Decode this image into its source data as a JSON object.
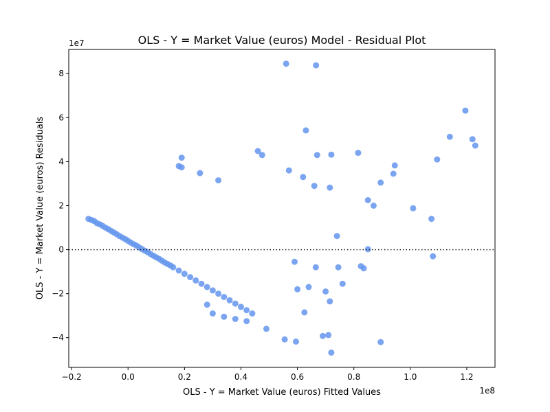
{
  "chart_data": {
    "type": "scatter",
    "title": "OLS - Y = Market Value (euros) Model - Residual Plot",
    "xlabel": "OLS - Y = Market Value (euros) Fitted Values",
    "ylabel": "OLS - Y = Market Value (euros) Residuals",
    "x_offset_label": "1e8",
    "y_offset_label": "1e7",
    "x_scale_exponent": 8,
    "y_scale_exponent": 7,
    "xlim": [
      -0.21,
      1.3
    ],
    "ylim": [
      -5.35,
      9.1
    ],
    "xticks": [
      -0.2,
      0.0,
      0.2,
      0.4,
      0.6,
      0.8,
      1.0,
      1.2
    ],
    "xtick_labels": [
      "−0.2",
      "0.0",
      "0.2",
      "0.4",
      "0.6",
      "0.8",
      "1.0",
      "1.2"
    ],
    "yticks": [
      -4,
      -2,
      0,
      2,
      4,
      6,
      8
    ],
    "ytick_labels": [
      "−4",
      "−2",
      "0",
      "2",
      "4",
      "6",
      "8"
    ],
    "reference_line": {
      "y": 0,
      "style": "dotted",
      "color": "#222222"
    },
    "grid": false,
    "point_color": "#6495ED",
    "point_opacity": 0.85,
    "series": [
      {
        "points": [
          [
            0.56,
            8.45
          ],
          [
            0.666,
            8.38
          ],
          [
            1.195,
            6.32
          ],
          [
            0.63,
            5.42
          ],
          [
            1.14,
            5.13
          ],
          [
            1.22,
            5.02
          ],
          [
            1.23,
            4.73
          ],
          [
            0.46,
            4.48
          ],
          [
            0.475,
            4.3
          ],
          [
            0.67,
            4.3
          ],
          [
            0.72,
            4.32
          ],
          [
            0.815,
            4.4
          ],
          [
            0.19,
            4.18
          ],
          [
            1.095,
            4.1
          ],
          [
            0.945,
            3.83
          ],
          [
            0.18,
            3.8
          ],
          [
            0.19,
            3.74
          ],
          [
            0.57,
            3.6
          ],
          [
            0.255,
            3.48
          ],
          [
            0.94,
            3.45
          ],
          [
            0.32,
            3.15
          ],
          [
            0.62,
            3.3
          ],
          [
            0.715,
            2.82
          ],
          [
            0.66,
            2.9
          ],
          [
            0.895,
            3.05
          ],
          [
            0.85,
            2.25
          ],
          [
            0.87,
            2.0
          ],
          [
            1.01,
            1.88
          ],
          [
            1.075,
            1.4
          ],
          [
            0.74,
            0.62
          ],
          [
            0.745,
            -0.8
          ],
          [
            0.76,
            -1.55
          ],
          [
            0.825,
            -0.75
          ],
          [
            0.835,
            -0.85
          ],
          [
            0.85,
            0.02
          ],
          [
            1.08,
            -0.3
          ],
          [
            0.7,
            -1.9
          ],
          [
            0.715,
            -2.35
          ],
          [
            0.71,
            -3.88
          ],
          [
            0.69,
            -3.92
          ],
          [
            0.72,
            -4.68
          ],
          [
            0.895,
            -4.2
          ],
          [
            0.595,
            -4.18
          ],
          [
            0.555,
            -4.08
          ],
          [
            0.49,
            -3.6
          ],
          [
            0.625,
            -2.85
          ],
          [
            0.6,
            -1.8
          ],
          [
            0.64,
            -1.7
          ],
          [
            0.665,
            -0.8
          ],
          [
            0.59,
            -0.55
          ],
          [
            -0.14,
            1.4
          ],
          [
            -0.13,
            1.35
          ],
          [
            -0.12,
            1.3
          ],
          [
            -0.11,
            1.2
          ],
          [
            -0.1,
            1.15
          ],
          [
            -0.09,
            1.08
          ],
          [
            -0.08,
            1.0
          ],
          [
            -0.07,
            0.93
          ],
          [
            -0.06,
            0.85
          ],
          [
            -0.05,
            0.78
          ],
          [
            -0.04,
            0.7
          ],
          [
            -0.03,
            0.62
          ],
          [
            -0.02,
            0.55
          ],
          [
            -0.01,
            0.48
          ],
          [
            0.0,
            0.4
          ],
          [
            0.01,
            0.32
          ],
          [
            0.02,
            0.25
          ],
          [
            0.03,
            0.18
          ],
          [
            0.04,
            0.1
          ],
          [
            0.05,
            0.02
          ],
          [
            0.06,
            -0.05
          ],
          [
            0.07,
            -0.12
          ],
          [
            0.08,
            -0.2
          ],
          [
            0.09,
            -0.28
          ],
          [
            0.1,
            -0.35
          ],
          [
            0.11,
            -0.42
          ],
          [
            0.12,
            -0.5
          ],
          [
            0.13,
            -0.58
          ],
          [
            0.14,
            -0.65
          ],
          [
            0.15,
            -0.72
          ],
          [
            0.16,
            -0.8
          ],
          [
            0.18,
            -0.95
          ],
          [
            0.2,
            -1.1
          ],
          [
            0.22,
            -1.25
          ],
          [
            0.24,
            -1.4
          ],
          [
            0.26,
            -1.55
          ],
          [
            0.28,
            -1.7
          ],
          [
            0.3,
            -1.85
          ],
          [
            0.32,
            -2.0
          ],
          [
            0.34,
            -2.15
          ],
          [
            0.36,
            -2.3
          ],
          [
            0.38,
            -2.45
          ],
          [
            0.4,
            -2.6
          ],
          [
            0.42,
            -2.75
          ],
          [
            0.44,
            -2.9
          ],
          [
            0.34,
            -3.05
          ],
          [
            0.38,
            -3.15
          ],
          [
            0.42,
            -3.25
          ],
          [
            0.3,
            -2.9
          ],
          [
            0.28,
            -2.5
          ]
        ]
      }
    ]
  }
}
